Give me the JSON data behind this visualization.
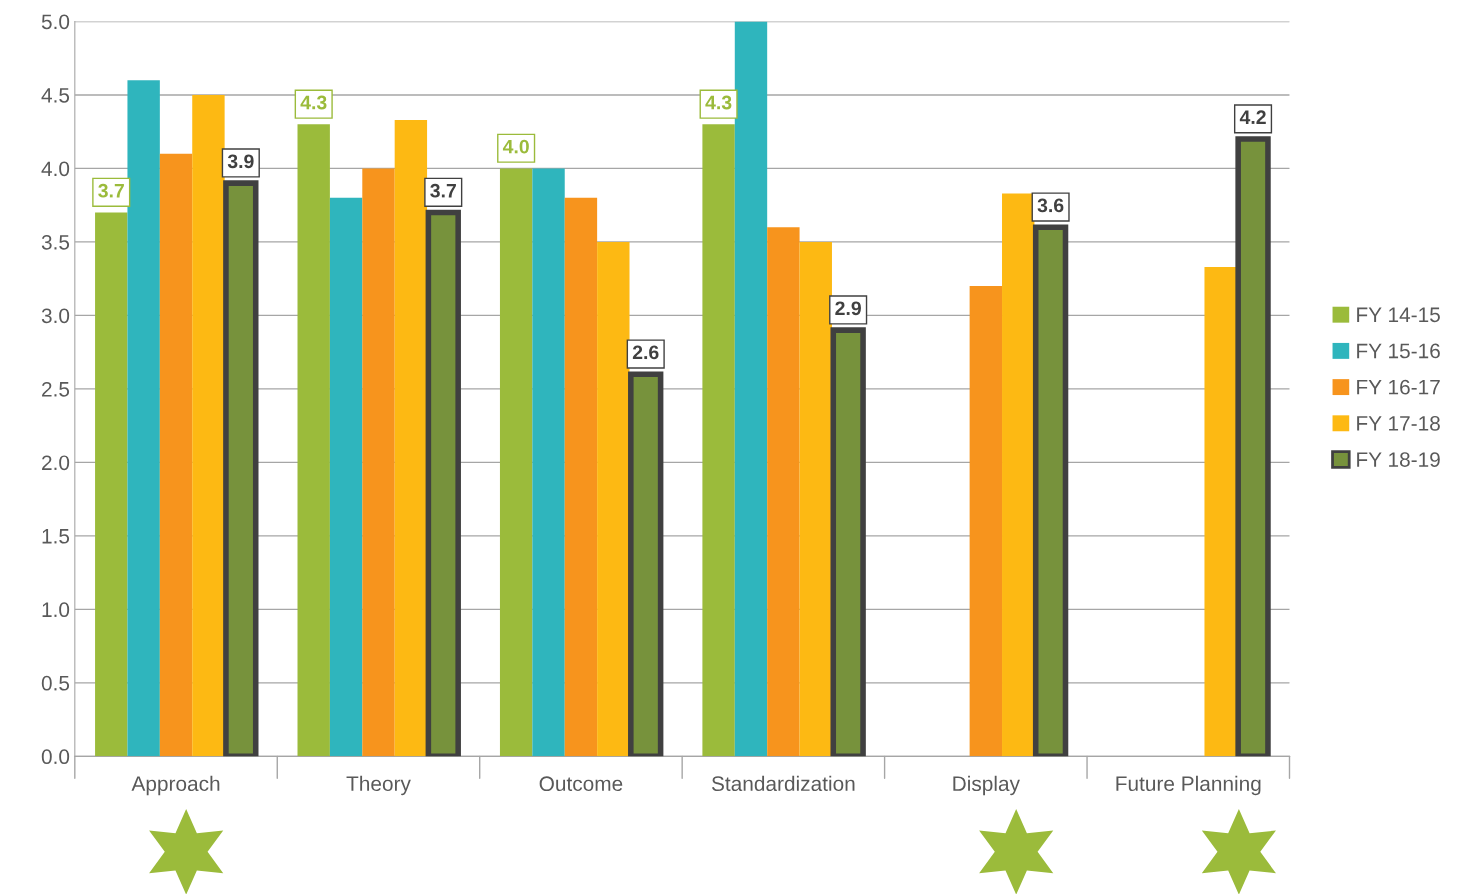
{
  "chart_data": {
    "type": "bar",
    "categories": [
      "Approach",
      "Theory",
      "Outcome",
      "Standardization",
      "Display",
      "Future Planning"
    ],
    "series": [
      {
        "name": "FY 14-15",
        "color": "#9bbb3b",
        "values": [
          3.7,
          4.3,
          4.0,
          4.3,
          null,
          null
        ],
        "value_labels": [
          "3.7",
          "4.3",
          "4.0",
          "4.3",
          null,
          null
        ]
      },
      {
        "name": "FY 15-16",
        "color": "#2fb5bd",
        "values": [
          4.6,
          3.8,
          4.0,
          5.0,
          null,
          null
        ]
      },
      {
        "name": "FY 16-17",
        "color": "#f7941d",
        "values": [
          4.1,
          4.0,
          3.8,
          3.6,
          3.2,
          null
        ]
      },
      {
        "name": "FY 17-18",
        "color": "#fdb913",
        "values": [
          4.5,
          4.33,
          3.5,
          3.5,
          3.83,
          3.33
        ]
      },
      {
        "name": "FY 18-19",
        "color": "#77923c",
        "values": [
          3.9,
          3.7,
          2.6,
          2.9,
          3.6,
          4.2
        ],
        "value_labels": [
          "3.9",
          "3.7",
          "2.6",
          "2.9",
          "3.6",
          "4.2"
        ]
      }
    ],
    "ylim": [
      0,
      5.0
    ],
    "yticks": [
      {
        "value": 0,
        "label": "0.0"
      },
      {
        "value": 0.5,
        "label": "0.5"
      },
      {
        "value": 1,
        "label": "1.0"
      },
      {
        "value": 1.5,
        "label": "1.5"
      },
      {
        "value": 2,
        "label": "2.0"
      },
      {
        "value": 2.5,
        "label": "2.5"
      },
      {
        "value": 3,
        "label": "3.0"
      },
      {
        "value": 3.5,
        "label": "3.5"
      },
      {
        "value": 4,
        "label": "4.0"
      },
      {
        "value": 4.5,
        "label": "4.5"
      },
      {
        "value": 5,
        "label": "5.0"
      }
    ],
    "grid": "y",
    "legend": "right"
  }
}
